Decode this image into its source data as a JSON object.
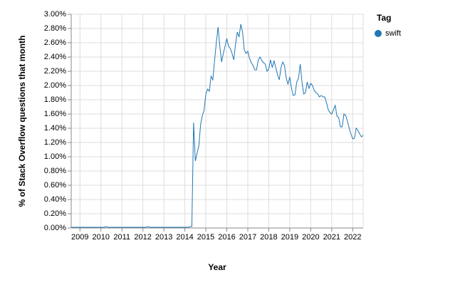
{
  "chart_data": {
    "type": "line",
    "x_label": "Year",
    "y_label": "% of Stack Overflow questions that month",
    "legend_title": "Tag",
    "legend_position": "top-right",
    "grid": true,
    "x": [
      "2008-08",
      "2008-09",
      "2008-10",
      "2008-11",
      "2008-12",
      "2009-01",
      "2009-02",
      "2009-03",
      "2009-04",
      "2009-05",
      "2009-06",
      "2009-07",
      "2009-08",
      "2009-09",
      "2009-10",
      "2009-11",
      "2009-12",
      "2010-01",
      "2010-02",
      "2010-03",
      "2010-04",
      "2010-05",
      "2010-06",
      "2010-07",
      "2010-08",
      "2010-09",
      "2010-10",
      "2010-11",
      "2010-12",
      "2011-01",
      "2011-02",
      "2011-03",
      "2011-04",
      "2011-05",
      "2011-06",
      "2011-07",
      "2011-08",
      "2011-09",
      "2011-10",
      "2011-11",
      "2011-12",
      "2012-01",
      "2012-02",
      "2012-03",
      "2012-04",
      "2012-05",
      "2012-06",
      "2012-07",
      "2012-08",
      "2012-09",
      "2012-10",
      "2012-11",
      "2012-12",
      "2013-01",
      "2013-02",
      "2013-03",
      "2013-04",
      "2013-05",
      "2013-06",
      "2013-07",
      "2013-08",
      "2013-09",
      "2013-10",
      "2013-11",
      "2013-12",
      "2014-01",
      "2014-02",
      "2014-03",
      "2014-04",
      "2014-05",
      "2014-06",
      "2014-07",
      "2014-08",
      "2014-09",
      "2014-10",
      "2014-11",
      "2014-12",
      "2015-01",
      "2015-02",
      "2015-03",
      "2015-04",
      "2015-05",
      "2015-06",
      "2015-07",
      "2015-08",
      "2015-09",
      "2015-10",
      "2015-11",
      "2015-12",
      "2016-01",
      "2016-02",
      "2016-03",
      "2016-04",
      "2016-05",
      "2016-06",
      "2016-07",
      "2016-08",
      "2016-09",
      "2016-10",
      "2016-11",
      "2016-12",
      "2017-01",
      "2017-02",
      "2017-03",
      "2017-04",
      "2017-05",
      "2017-06",
      "2017-07",
      "2017-08",
      "2017-09",
      "2017-10",
      "2017-11",
      "2017-12",
      "2018-01",
      "2018-02",
      "2018-03",
      "2018-04",
      "2018-05",
      "2018-06",
      "2018-07",
      "2018-08",
      "2018-09",
      "2018-10",
      "2018-11",
      "2018-12",
      "2019-01",
      "2019-02",
      "2019-03",
      "2019-04",
      "2019-05",
      "2019-06",
      "2019-07",
      "2019-08",
      "2019-09",
      "2019-10",
      "2019-11",
      "2019-12",
      "2020-01",
      "2020-02",
      "2020-03",
      "2020-04",
      "2020-05",
      "2020-06",
      "2020-07",
      "2020-08",
      "2020-09",
      "2020-10",
      "2020-11",
      "2020-12",
      "2021-01",
      "2021-02",
      "2021-03",
      "2021-04",
      "2021-05",
      "2021-06",
      "2021-07",
      "2021-08",
      "2021-09",
      "2021-10",
      "2021-11",
      "2021-12",
      "2022-01",
      "2022-02",
      "2022-03",
      "2022-04",
      "2022-05",
      "2022-06",
      "2022-07"
    ],
    "series": [
      {
        "name": "swift",
        "color": "#1f77b4",
        "values": [
          0.01,
          0.01,
          0.01,
          0.01,
          0.01,
          0.01,
          0.01,
          0.01,
          0.01,
          0.01,
          0.01,
          0.01,
          0.01,
          0.01,
          0.01,
          0.01,
          0.01,
          0.01,
          0.01,
          0.01,
          0.02,
          0.01,
          0.01,
          0.01,
          0.01,
          0.01,
          0.01,
          0.01,
          0.01,
          0.01,
          0.01,
          0.01,
          0.01,
          0.01,
          0.01,
          0.01,
          0.01,
          0.01,
          0.01,
          0.01,
          0.01,
          0.01,
          0.01,
          0.01,
          0.02,
          0.01,
          0.01,
          0.01,
          0.01,
          0.01,
          0.01,
          0.01,
          0.01,
          0.01,
          0.01,
          0.01,
          0.01,
          0.01,
          0.01,
          0.01,
          0.01,
          0.01,
          0.01,
          0.01,
          0.01,
          0.01,
          0.01,
          0.01,
          0.02,
          0.02,
          1.48,
          0.94,
          1.05,
          1.15,
          1.45,
          1.58,
          1.65,
          1.88,
          1.95,
          1.92,
          2.13,
          2.08,
          2.35,
          2.6,
          2.82,
          2.55,
          2.33,
          2.45,
          2.55,
          2.66,
          2.55,
          2.52,
          2.45,
          2.36,
          2.58,
          2.75,
          2.68,
          2.86,
          2.75,
          2.5,
          2.45,
          2.48,
          2.38,
          2.32,
          2.28,
          2.22,
          2.22,
          2.36,
          2.4,
          2.35,
          2.32,
          2.3,
          2.2,
          2.23,
          2.36,
          2.25,
          2.35,
          2.25,
          2.15,
          2.08,
          2.25,
          2.33,
          2.28,
          2.1,
          2.02,
          2.12,
          1.96,
          1.86,
          1.87,
          2.05,
          2.1,
          2.3,
          2.05,
          1.88,
          1.9,
          2.05,
          1.96,
          2.03,
          2.0,
          1.93,
          1.9,
          1.88,
          1.84,
          1.86,
          1.84,
          1.84,
          1.76,
          1.66,
          1.62,
          1.6,
          1.66,
          1.72,
          1.57,
          1.55,
          1.42,
          1.42,
          1.6,
          1.58,
          1.5,
          1.4,
          1.32,
          1.25,
          1.26,
          1.4,
          1.37,
          1.32,
          1.28,
          1.3
        ]
      }
    ],
    "xlim": [
      "2008-08",
      "2022-07"
    ],
    "xticks": [
      {
        "value": "2009-01",
        "label": "2009"
      },
      {
        "value": "2010-01",
        "label": "2010"
      },
      {
        "value": "2011-01",
        "label": "2011"
      },
      {
        "value": "2012-01",
        "label": "2012"
      },
      {
        "value": "2013-01",
        "label": "2013"
      },
      {
        "value": "2014-01",
        "label": "2014"
      },
      {
        "value": "2015-01",
        "label": "2015"
      },
      {
        "value": "2016-01",
        "label": "2016"
      },
      {
        "value": "2017-01",
        "label": "2017"
      },
      {
        "value": "2018-01",
        "label": "2018"
      },
      {
        "value": "2019-01",
        "label": "2019"
      },
      {
        "value": "2020-01",
        "label": "2020"
      },
      {
        "value": "2021-01",
        "label": "2021"
      },
      {
        "value": "2022-01",
        "label": "2022"
      }
    ],
    "ylim": [
      0,
      3
    ],
    "yticks": [
      {
        "value": 0,
        "label": "0.00%"
      },
      {
        "value": 0.2,
        "label": "0.20%"
      },
      {
        "value": 0.4,
        "label": "0.40%"
      },
      {
        "value": 0.6,
        "label": "0.60%"
      },
      {
        "value": 0.8,
        "label": "0.80%"
      },
      {
        "value": 1.0,
        "label": "1.00%"
      },
      {
        "value": 1.2,
        "label": "1.20%"
      },
      {
        "value": 1.4,
        "label": "1.40%"
      },
      {
        "value": 1.6,
        "label": "1.60%"
      },
      {
        "value": 1.8,
        "label": "1.80%"
      },
      {
        "value": 2.0,
        "label": "2.00%"
      },
      {
        "value": 2.2,
        "label": "2.20%"
      },
      {
        "value": 2.4,
        "label": "2.40%"
      },
      {
        "value": 2.6,
        "label": "2.60%"
      },
      {
        "value": 2.8,
        "label": "2.80%"
      },
      {
        "value": 3.0,
        "label": "3.00%"
      }
    ]
  }
}
